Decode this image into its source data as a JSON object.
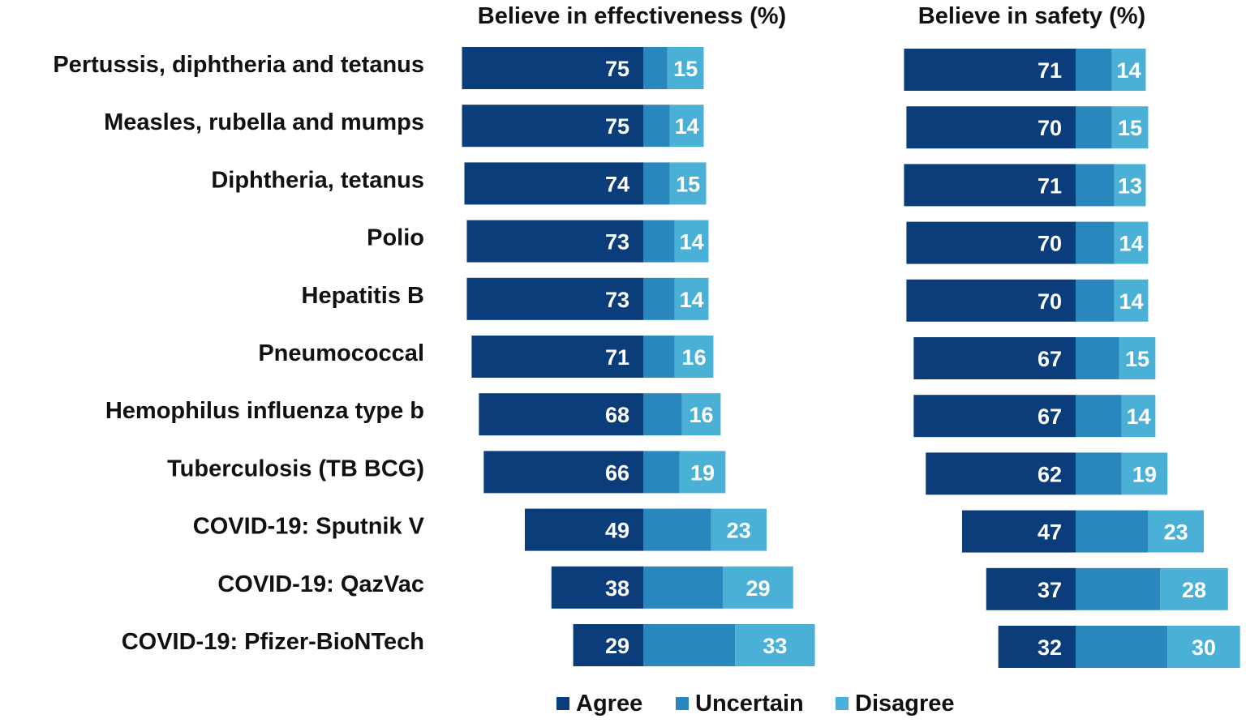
{
  "colors": {
    "agree": "#0b3d7a",
    "uncertain": "#2a87bd",
    "disagree": "#4ab0d5",
    "text": "#111111"
  },
  "chart_data": {
    "type": "bar",
    "orientation": "horizontal",
    "stacked": "diverging",
    "categories": [
      "Pertussis, diphtheria and tetanus",
      "Measles, rubella and mumps",
      "Diphtheria, tetanus",
      "Polio",
      "Hepatitis B",
      "Pneumococcal",
      "Hemophilus influenza type b",
      "Tuberculosis (TB BCG)",
      "COVID-19: Sputnik V",
      "COVID-19: QazVac",
      "COVID-19: Pfizer-BioNTech"
    ],
    "legend": {
      "position": "bottom",
      "entries": [
        "Agree",
        "Uncertain",
        "Disagree"
      ]
    },
    "panels": [
      {
        "title": "Believe in effectiveness (%)",
        "series": [
          {
            "name": "Agree",
            "values": [
              75,
              75,
              74,
              73,
              73,
              71,
              68,
              66,
              49,
              38,
              29
            ]
          },
          {
            "name": "Uncertain",
            "values": [
              10,
              11,
              11,
              13,
              13,
              13,
              16,
              15,
              28,
              33,
              38
            ]
          },
          {
            "name": "Disagree",
            "values": [
              15,
              14,
              15,
              14,
              14,
              16,
              16,
              19,
              23,
              29,
              33
            ]
          }
        ]
      },
      {
        "title": "Believe in safety (%)",
        "series": [
          {
            "name": "Agree",
            "values": [
              71,
              70,
              71,
              70,
              70,
              67,
              67,
              62,
              47,
              37,
              32
            ]
          },
          {
            "name": "Uncertain",
            "values": [
              15,
              15,
              16,
              16,
              16,
              18,
              19,
              19,
              30,
              35,
              38
            ]
          },
          {
            "name": "Disagree",
            "values": [
              14,
              15,
              13,
              14,
              14,
              15,
              14,
              19,
              23,
              28,
              30
            ]
          }
        ]
      }
    ]
  }
}
